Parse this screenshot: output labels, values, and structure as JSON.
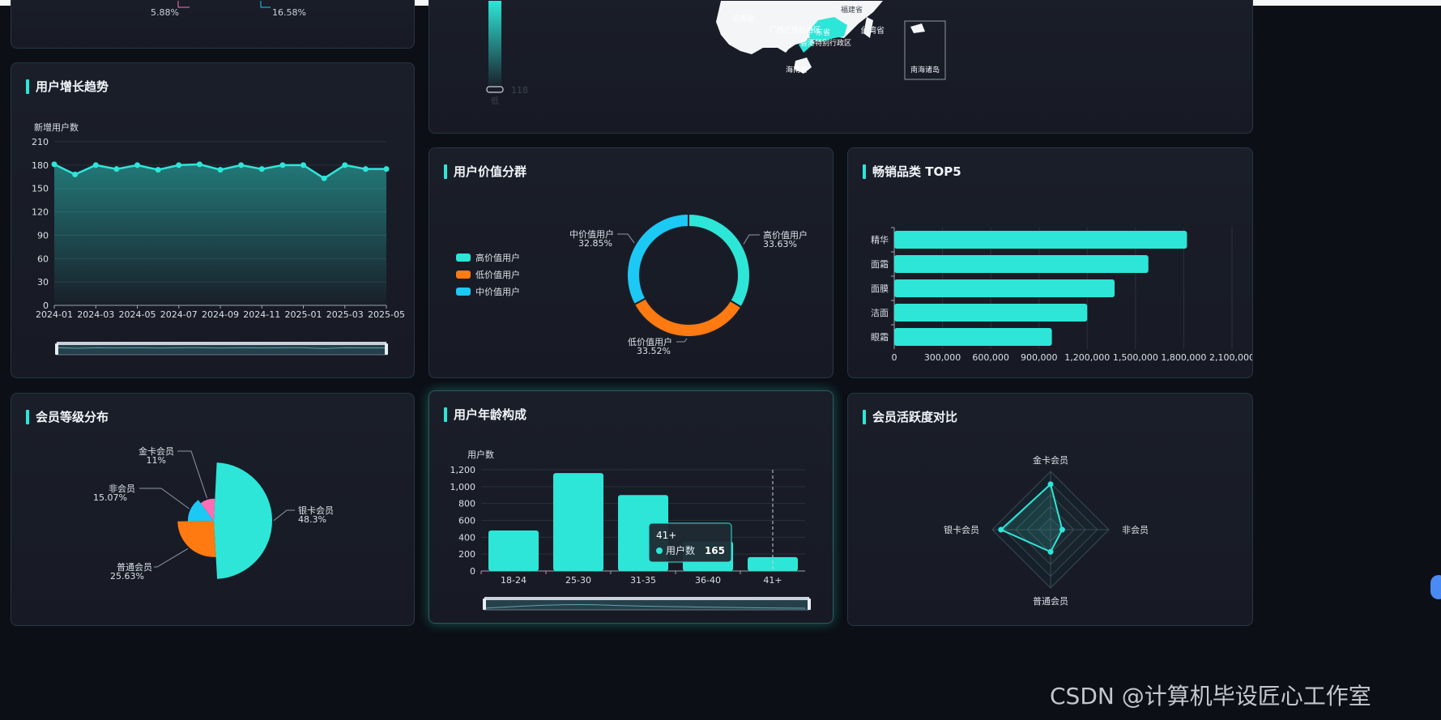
{
  "map_panel": {
    "visual_map_value": "118",
    "visual_map_low": "低",
    "region_labels": [
      "云南省",
      "福建省",
      "广东省",
      "台湾省",
      "广西壮族自治区",
      "海南省",
      "南海诸岛",
      "香港特别行政区"
    ],
    "top_left_legend_values": [
      "5.88%",
      "16.58%"
    ]
  },
  "colors": {
    "accent": "#2de6d8",
    "orange": "#ff7a10",
    "cyan": "#1cc9f5",
    "pink": "#ff6eb4"
  },
  "charts": {
    "growth": {
      "title": "用户增长趋势",
      "chart_data": {
        "type": "area",
        "ylabel": "新增用户数",
        "ylim": [
          0,
          210
        ],
        "yticks": [
          "0",
          "30",
          "60",
          "90",
          "120",
          "150",
          "180",
          "210"
        ],
        "x": [
          "2024-01",
          "2024-02",
          "2024-03",
          "2024-04",
          "2024-05",
          "2024-06",
          "2024-07",
          "2024-08",
          "2024-09",
          "2024-10",
          "2024-11",
          "2024-12",
          "2025-01",
          "2025-02",
          "2025-03",
          "2025-04",
          "2025-05"
        ],
        "xticks": [
          "2024-01",
          "2024-03",
          "2024-05",
          "2024-07",
          "2024-09",
          "2024-11",
          "2025-01",
          "2025-03",
          "2025-05"
        ],
        "values": [
          181,
          168,
          180,
          175,
          180,
          174,
          180,
          181,
          174,
          180,
          175,
          180,
          180,
          163,
          180,
          175,
          175
        ],
        "grid": true,
        "data_zoom": true
      }
    },
    "value_segment": {
      "title": "用户价值分群",
      "chart_data": {
        "type": "pie",
        "donut": true,
        "legend_position": "left",
        "slices": [
          {
            "name": "高价值用户",
            "value": 33.63,
            "label": "33.63%",
            "color": "#2de6d8"
          },
          {
            "name": "低价值用户",
            "value": 33.52,
            "label": "33.52%",
            "color": "#ff7a10"
          },
          {
            "name": "中价值用户",
            "value": 32.85,
            "label": "32.85%",
            "color": "#1cc9f5"
          }
        ]
      }
    },
    "top5": {
      "title": "畅销品类 TOP5",
      "chart_data": {
        "type": "bar",
        "orientation": "horizontal",
        "categories": [
          "精华",
          "面霜",
          "面膜",
          "洁面",
          "眼霜"
        ],
        "values": [
          1820000,
          1580000,
          1370000,
          1200000,
          980000
        ],
        "xlim": [
          0,
          2100000
        ],
        "xticks": [
          "0",
          "300,000",
          "600,000",
          "900,000",
          "1,200,000",
          "1,500,000",
          "1,800,000",
          "2,100,000"
        ],
        "grid": true
      }
    },
    "member_level": {
      "title": "会员等级分布",
      "chart_data": {
        "type": "pie",
        "rose": true,
        "slices": [
          {
            "name": "银卡会员",
            "value": 48.3,
            "label": "48.3%",
            "color": "#2de6d8"
          },
          {
            "name": "普通会员",
            "value": 25.63,
            "label": "25.63%",
            "color": "#ff7a10"
          },
          {
            "name": "非会员",
            "value": 15.07,
            "label": "15.07%",
            "color": "#1cc9f5"
          },
          {
            "name": "金卡会员",
            "value": 11,
            "label": "11%",
            "color": "#ff6eb4"
          }
        ]
      }
    },
    "age": {
      "title": "用户年龄构成",
      "chart_data": {
        "type": "bar",
        "ylabel": "用户数",
        "categories": [
          "18-24",
          "25-30",
          "31-35",
          "36-40",
          "41+"
        ],
        "values": [
          480,
          1160,
          900,
          350,
          165
        ],
        "ylim": [
          0,
          1200
        ],
        "yticks": [
          "0",
          "200",
          "400",
          "600",
          "800",
          "1,000",
          "1,200"
        ],
        "grid": true,
        "data_zoom": true
      },
      "tooltip": {
        "category": "41+",
        "series": "用户数",
        "value": "165"
      }
    },
    "activity": {
      "title": "会员活跃度对比",
      "chart_data": {
        "type": "radar",
        "indicators": [
          "金卡会员",
          "非会员",
          "普通会员",
          "银卡会员"
        ],
        "values": [
          0.78,
          0.2,
          0.38,
          0.85
        ],
        "max": 1
      }
    }
  },
  "watermark": "CSDN @计算机毕设匠心工作室"
}
